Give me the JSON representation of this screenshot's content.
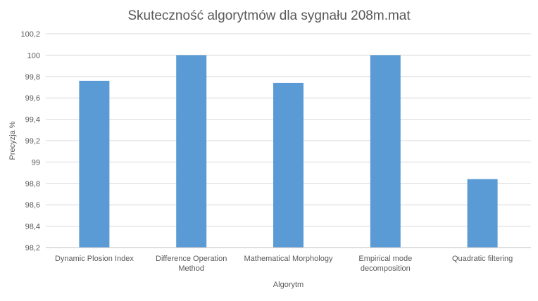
{
  "chart_data": {
    "type": "bar",
    "title": "Skuteczność algorytmów dla sygnału 208m.mat",
    "xlabel": "Algorytm",
    "ylabel": "Precyzja %",
    "ylim": [
      98.2,
      100.2
    ],
    "yticks": [
      98.2,
      98.4,
      98.6,
      98.8,
      99,
      99.2,
      99.4,
      99.6,
      99.8,
      100,
      100.2
    ],
    "ytick_labels": [
      "98,2",
      "98,4",
      "98,6",
      "98,8",
      "99",
      "99,2",
      "99,4",
      "99,6",
      "99,8",
      "100",
      "100,2"
    ],
    "categories": [
      [
        "Dynamic Plosion Index"
      ],
      [
        "Difference Operation",
        "Method"
      ],
      [
        "Mathematical Morphology"
      ],
      [
        "Empirical mode",
        "decomposition"
      ],
      [
        "Quadratic filtering"
      ]
    ],
    "values": [
      99.76,
      100,
      99.74,
      100,
      98.84
    ],
    "grid": true,
    "legend": "none",
    "colors": {
      "bar": "#5b9bd5",
      "grid": "#d9d9d9",
      "axis": "#bfbfbf",
      "text": "#595959",
      "title": "#595959"
    }
  }
}
